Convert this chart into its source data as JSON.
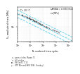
{
  "title_left": "T = 20 °C",
  "title_right_line1": "LAMBDA = 1 NEES (this)",
  "title_right_line2": "σa [MPa]",
  "xlabel": "Nₙ number of stress cycles",
  "ylabel": "Sₐₙ amplitude of stress [MPa]",
  "xlim": [
    10000.0,
    200000000.0
  ],
  "ylim": [
    30,
    500
  ],
  "scatter_groups": [
    {
      "xy": [
        [
          10000.0,
          280
        ],
        [
          30000.0,
          240
        ],
        [
          12000.0,
          270
        ],
        [
          40000.0,
          230
        ]
      ],
      "marker": "o",
      "filled": false,
      "color": "#555555"
    },
    {
      "xy": [
        [
          20000.0,
          260
        ],
        [
          70000.0,
          200
        ],
        [
          25000.0,
          250
        ],
        [
          80000.0,
          205
        ],
        [
          100000.0,
          190
        ],
        [
          150000.0,
          175
        ],
        [
          120000.0,
          185
        ],
        [
          180000.0,
          170
        ]
      ],
      "marker": "o",
      "filled": true,
      "color": "#333333"
    },
    {
      "xy": [
        [
          50000.0,
          220
        ],
        [
          300000.0,
          150
        ],
        [
          60000.0,
          210
        ],
        [
          400000.0,
          140
        ],
        [
          200000.0,
          160
        ],
        [
          700000.0,
          120
        ],
        [
          250000.0,
          155
        ],
        [
          800000.0,
          115
        ],
        [
          500000.0,
          130
        ],
        [
          1500000.0,
          100
        ],
        [
          600000.0,
          125
        ],
        [
          1800000.0,
          98
        ]
      ],
      "marker": "s",
      "filled": true,
      "color": "#555555"
    },
    {
      "xy": [
        [
          1000000.0,
          110
        ],
        [
          3000000.0,
          88
        ],
        [
          1200000.0,
          105
        ],
        [
          4000000.0,
          85
        ],
        [
          2000000.0,
          95
        ],
        [
          7000000.0,
          75
        ],
        [
          2500000.0,
          92
        ],
        [
          8000000.0,
          73
        ],
        [
          5000000.0,
          80
        ],
        [
          15000000.0,
          65
        ],
        [
          6000000.0,
          78
        ],
        [
          18000000.0,
          63
        ],
        [
          10000000.0,
          70
        ],
        [
          12000000.0,
          68
        ]
      ],
      "marker": "^",
      "filled": true,
      "color": "#777777"
    }
  ],
  "lines": [
    {
      "x": [
        10000.0,
        200000000.0
      ],
      "y": [
        380,
        42
      ]
    },
    {
      "x": [
        10000.0,
        200000000.0
      ],
      "y": [
        280,
        31
      ]
    },
    {
      "x": [
        10000.0,
        200000000.0
      ],
      "y": [
        210,
        23
      ]
    }
  ],
  "line_color": "#55ccee",
  "line_style": "--",
  "line_width": 0.6,
  "legend_labels": [
    "open circles (Room T.)",
    "full circles",
    "SS Exell 17-12",
    "UTP Mir and AISI 316L (Landry)"
  ],
  "bg_color": "#ffffff",
  "grid_color": "#bbbbbb"
}
